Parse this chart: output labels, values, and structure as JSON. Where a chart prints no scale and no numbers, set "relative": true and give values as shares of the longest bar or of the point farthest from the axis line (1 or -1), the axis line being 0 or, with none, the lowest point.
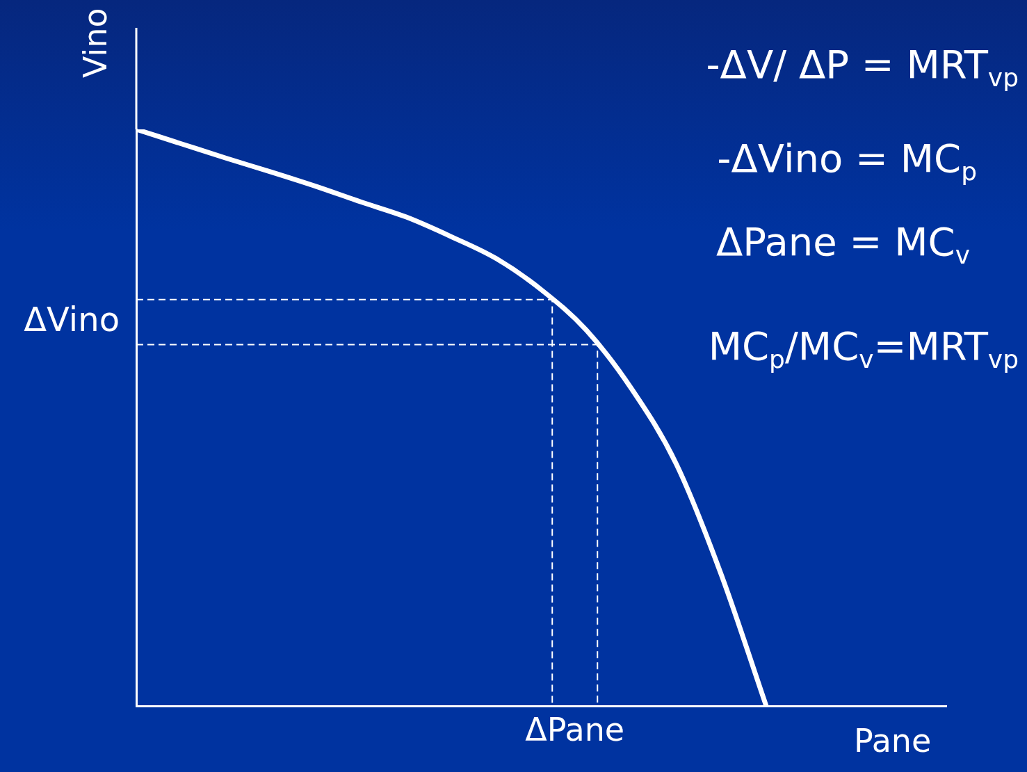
{
  "chart_data": {
    "type": "line",
    "relative": true,
    "xlabel": "Pane",
    "ylabel": "Vino",
    "categories": [
      null,
      null,
      null,
      null,
      null,
      null,
      null,
      null,
      null,
      null,
      null,
      null,
      null,
      null,
      null,
      null,
      null,
      null,
      null
    ],
    "series": [
      {
        "color": "#ffffff",
        "values": [
          1,
          0.975,
          0.95,
          0.926,
          0.901,
          0.874,
          0.848,
          0.814,
          0.776,
          0.722,
          0.652,
          0.551,
          0.42,
          0.228,
          0,
          null,
          null,
          null,
          null
        ]
      }
    ],
    "ref_lines": [
      {
        "axis": "y",
        "value": 0.705,
        "label": "ΔVino",
        "line_style": "dashed"
      },
      {
        "axis": "y",
        "value": 0.627,
        "line_style": "dashed"
      }
    ],
    "annotations": [
      "-ΔV/ ΔP = MRT$_{vp}$",
      "-ΔVino = MC$_{p}$",
      "ΔPane = MC$_{v}$",
      "MC$_{p}$/MC$_{v}$=MRT$_{vp}$",
      "ΔPane"
    ],
    "grid": false,
    "legend": false,
    "marker": "none",
    "line_style": "solid"
  }
}
